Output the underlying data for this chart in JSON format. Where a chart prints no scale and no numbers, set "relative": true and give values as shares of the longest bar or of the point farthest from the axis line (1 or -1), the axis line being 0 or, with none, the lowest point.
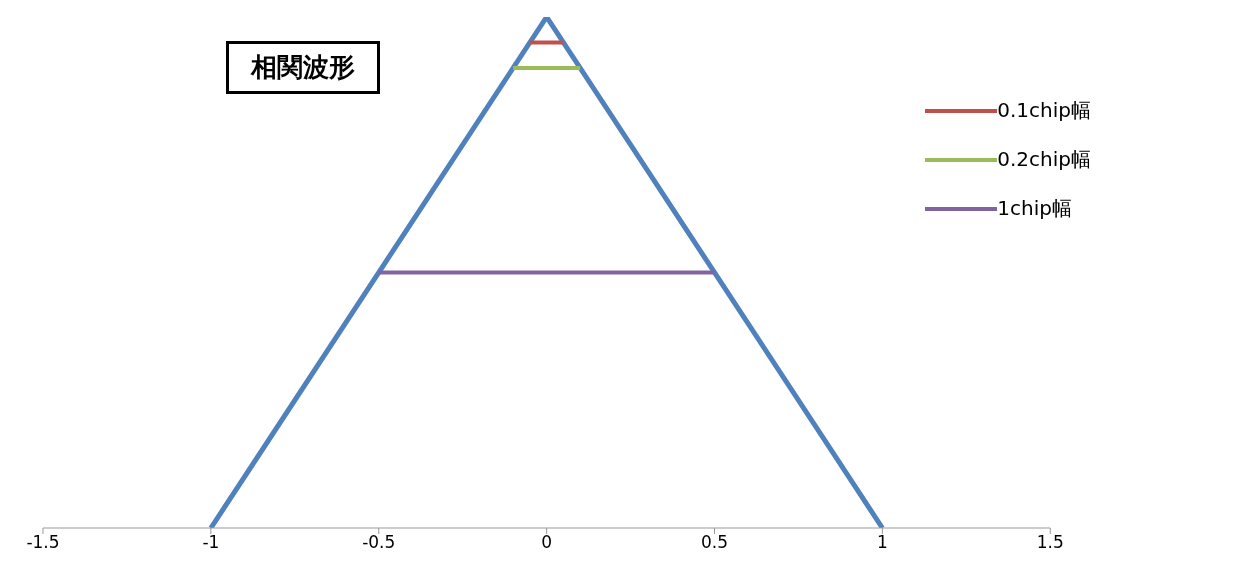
{
  "chart_data": {
    "type": "line",
    "title": "相関波形",
    "relative": true,
    "xlim": [
      -1.5,
      1.5
    ],
    "xticks": [
      -1.5,
      -1,
      -0.5,
      0,
      0.5,
      1,
      1.5
    ],
    "grid": false,
    "legend": "top right",
    "marker": "none",
    "line_style": "solid",
    "series": [
      {
        "color": "#4f81bd",
        "x": [
          -1,
          0,
          1
        ],
        "values": [
          0,
          1,
          0
        ]
      },
      {
        "name": "0.1chip幅",
        "color": "#c0504d",
        "x": [
          -0.05,
          0.05
        ],
        "values": [
          0.95,
          0.95
        ]
      },
      {
        "name": "0.2chip幅",
        "color": "#9bbb59",
        "x": [
          -0.1,
          0.1
        ],
        "values": [
          0.9,
          0.9
        ]
      },
      {
        "name": "1chip幅",
        "color": "#8064a2",
        "x": [
          -0.5,
          0.5
        ],
        "values": [
          0.5,
          0.5
        ]
      }
    ]
  }
}
